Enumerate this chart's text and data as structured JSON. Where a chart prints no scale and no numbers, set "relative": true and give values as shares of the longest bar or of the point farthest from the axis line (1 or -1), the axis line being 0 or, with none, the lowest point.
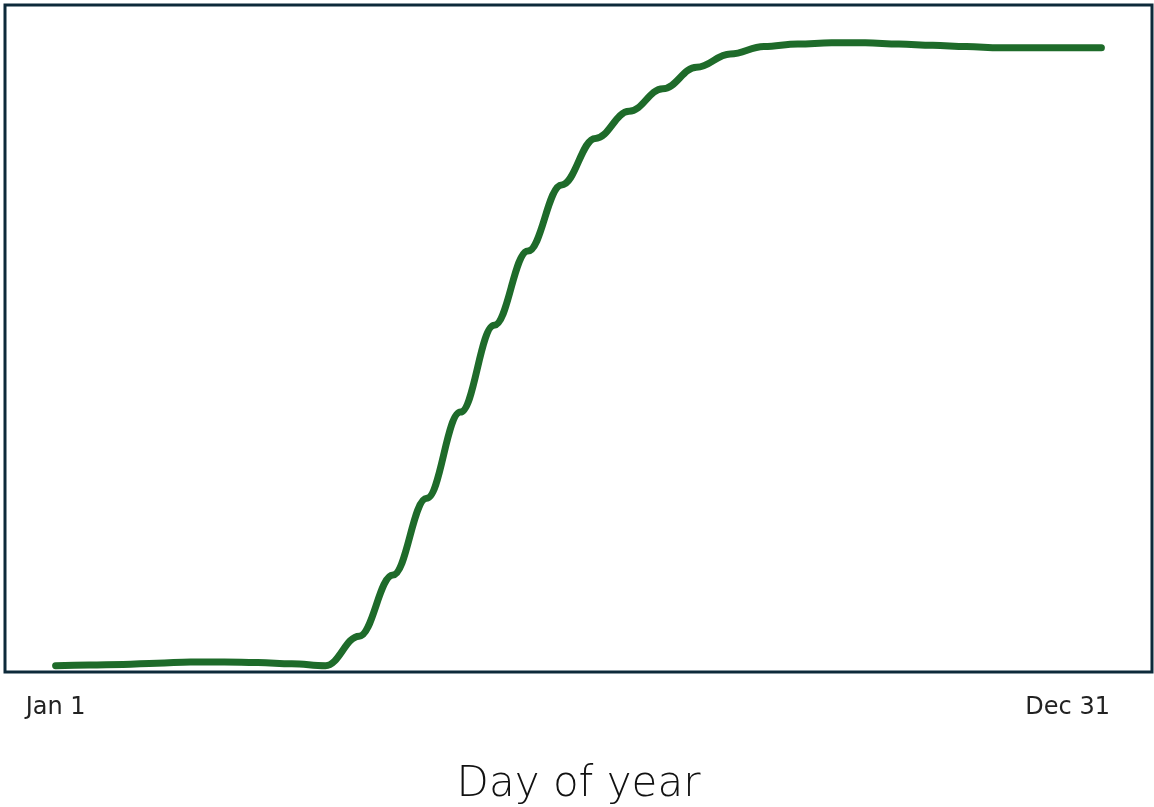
{
  "chart_data": {
    "type": "line",
    "xlabel": "Day of year",
    "relative": true,
    "categories": [
      null,
      "Jan 1",
      null,
      null,
      null,
      null,
      null,
      null,
      null,
      null,
      null,
      null,
      null,
      null,
      null,
      null,
      null,
      null,
      null,
      null,
      null,
      null,
      null,
      null,
      null,
      null,
      null,
      null,
      null,
      null,
      null,
      "Dec 31",
      null,
      null
    ],
    "series": [
      {
        "color": "#1e6b2a",
        "values": [
          null,
          0.01,
          0.011,
          0.012,
          0.014,
          0.016,
          0.016,
          0.015,
          0.013,
          0.01,
          0.057,
          0.154,
          0.276,
          0.413,
          0.551,
          0.669,
          0.774,
          0.848,
          0.891,
          0.927,
          0.961,
          0.982,
          0.994,
          0.998,
          1,
          1,
          0.998,
          0.996,
          0.994,
          0.992,
          0.992,
          0.992,
          0.992,
          null
        ]
      }
    ],
    "grid": false,
    "marker": "none",
    "line_style": "solid"
  }
}
